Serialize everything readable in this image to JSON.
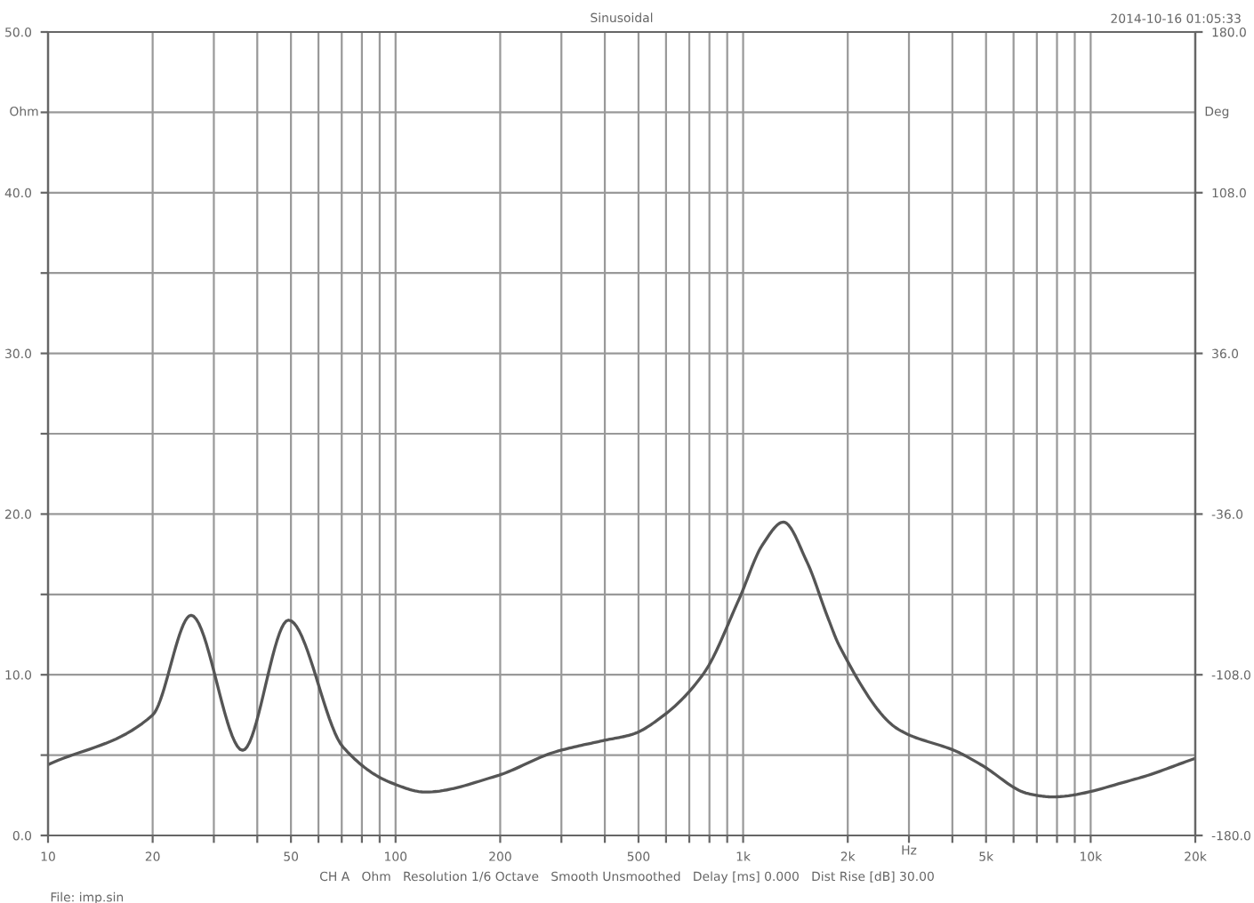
{
  "chart_data": {
    "type": "line",
    "title": "Sinusoidal",
    "xlabel": "Hz",
    "ylabel": "Ohm",
    "y2label": "Deg",
    "annotations": [
      "2014-10-16 01:05:33",
      "CH A   Ohm   Resolution 1/6 Octave   Smooth Unsmoothed   Delay [ms] 0.000   Dist Rise [dB] 30.00",
      "File: imp.sin"
    ],
    "log": "x",
    "grid": true,
    "line_style": "solid",
    "marker": "none",
    "xlim": [
      10,
      20000
    ],
    "xticks": [
      {
        "value": 10,
        "label": "10"
      },
      {
        "value": 20,
        "label": "20"
      },
      {
        "value": 30,
        "label": null
      },
      {
        "value": 40,
        "label": null
      },
      {
        "value": 50,
        "label": "50"
      },
      {
        "value": 60,
        "label": null
      },
      {
        "value": 70,
        "label": null
      },
      {
        "value": 80,
        "label": null
      },
      {
        "value": 90,
        "label": null
      },
      {
        "value": 100,
        "label": "100"
      },
      {
        "value": 200,
        "label": "200"
      },
      {
        "value": 300,
        "label": null
      },
      {
        "value": 400,
        "label": null
      },
      {
        "value": 500,
        "label": "500"
      },
      {
        "value": 600,
        "label": null
      },
      {
        "value": 700,
        "label": null
      },
      {
        "value": 800,
        "label": null
      },
      {
        "value": 900,
        "label": null
      },
      {
        "value": 1000,
        "label": "1k"
      },
      {
        "value": 2000,
        "label": "2k"
      },
      {
        "value": 3000,
        "label": null
      },
      {
        "value": 4000,
        "label": null
      },
      {
        "value": 5000,
        "label": "5k"
      },
      {
        "value": 6000,
        "label": null
      },
      {
        "value": 7000,
        "label": null
      },
      {
        "value": 8000,
        "label": null
      },
      {
        "value": 9000,
        "label": null
      },
      {
        "value": 10000,
        "label": "10k"
      },
      {
        "value": 20000,
        "label": "20k"
      }
    ],
    "ylim": [
      0,
      50
    ],
    "yticks": [
      {
        "value": 0,
        "label": "0.0"
      },
      {
        "value": 5,
        "label": null
      },
      {
        "value": 10,
        "label": "10.0"
      },
      {
        "value": 15,
        "label": null
      },
      {
        "value": 20,
        "label": "20.0"
      },
      {
        "value": 25,
        "label": null
      },
      {
        "value": 30,
        "label": "30.0"
      },
      {
        "value": 35,
        "label": null
      },
      {
        "value": 40,
        "label": "40.0"
      },
      {
        "value": 45,
        "label": null
      },
      {
        "value": 50,
        "label": "50.0"
      }
    ],
    "y2lim": [
      -180,
      180
    ],
    "y2ticks": [
      {
        "value": -180,
        "label": "-180.0"
      },
      {
        "value": -108,
        "label": "-108.0"
      },
      {
        "value": -36,
        "label": "-36.0"
      },
      {
        "value": 36,
        "label": "36.0"
      },
      {
        "value": 108,
        "label": "108.0"
      },
      {
        "value": 180,
        "label": "180.0"
      }
    ],
    "series": [
      {
        "color": "#555555",
        "x": [
          10,
          20,
          25.8,
          36.3,
          49.2,
          70.6,
          96.6,
          122,
          195,
          288,
          395,
          481,
          585,
          771,
          973,
          1138,
          1306,
          1528,
          1750,
          1892,
          2797,
          4140,
          4840,
          6620,
          7740,
          13400,
          20000
        ],
        "values": [
          4.4,
          7.5,
          13.7,
          5.3,
          13.4,
          5.5,
          3.3,
          2.7,
          3.7,
          5.2,
          5.9,
          6.3,
          7.4,
          10.1,
          14.7,
          18.1,
          19.5,
          17.0,
          13.6,
          11.8,
          6.6,
          5.2,
          4.4,
          2.6,
          2.4,
          3.5,
          4.8
        ]
      }
    ]
  }
}
